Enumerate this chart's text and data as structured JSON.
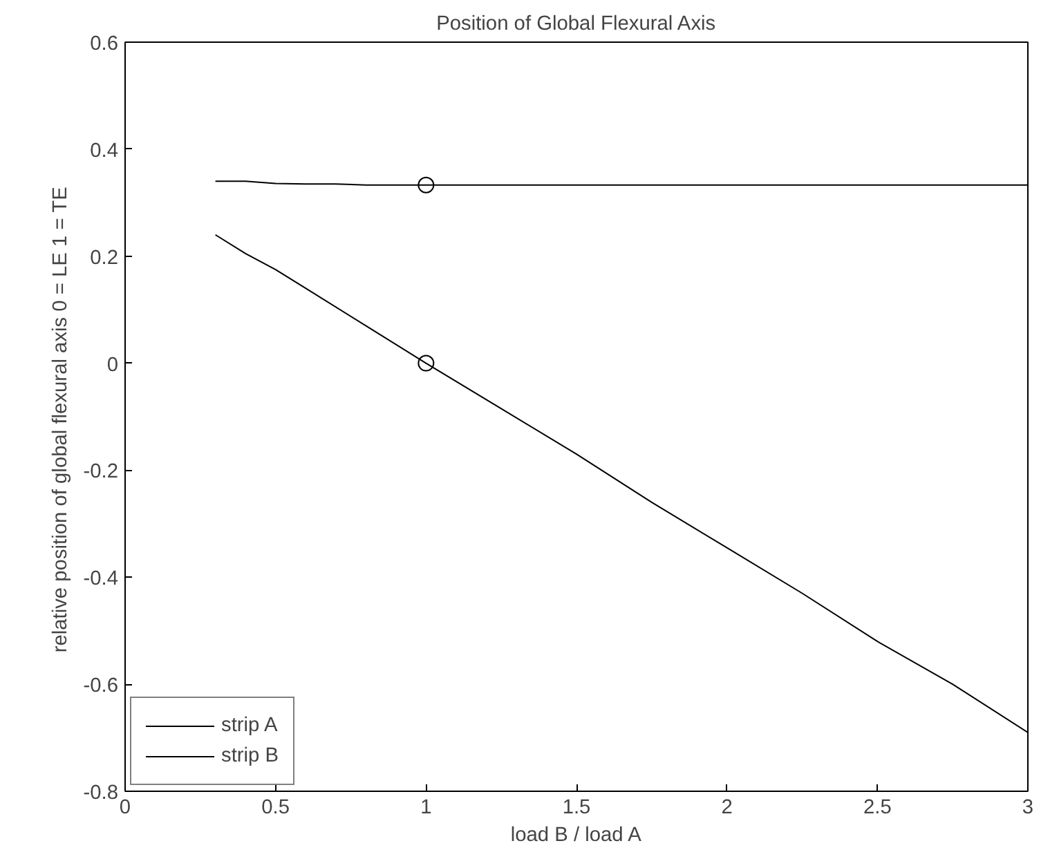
{
  "chart_data": {
    "type": "line",
    "title": "Position of Global Flexural Axis",
    "xlabel": "load B / load A",
    "ylabel": "relative position of global flexural axis  0 = LE 1 = TE",
    "xlim": [
      0,
      3
    ],
    "ylim": [
      -0.8,
      0.6
    ],
    "xticks": [
      0,
      0.5,
      1,
      1.5,
      2,
      2.5,
      3
    ],
    "yticks": [
      -0.8,
      -0.6,
      -0.4,
      -0.2,
      0,
      0.2,
      0.4,
      0.6
    ],
    "grid": false,
    "legend": "bottom left",
    "line_style": "solid",
    "marker": "none",
    "series": [
      {
        "name": "strip A",
        "color": "#000000",
        "x": [
          0.3,
          0.4,
          0.5,
          0.6,
          0.8,
          1.0,
          1.25,
          1.5,
          1.75,
          2.0,
          2.25,
          2.5,
          2.75,
          3.0
        ],
        "values": [
          0.24,
          0.205,
          0.175,
          0.14,
          0.07,
          0.0,
          -0.085,
          -0.17,
          -0.26,
          -0.345,
          -0.43,
          -0.52,
          -0.6,
          -0.69
        ]
      },
      {
        "name": "strip B",
        "color": "#000000",
        "x": [
          0.3,
          0.4,
          0.5,
          0.6,
          0.7,
          0.8,
          1.0,
          1.5,
          2.0,
          2.5,
          3.0
        ],
        "values": [
          0.34,
          0.34,
          0.336,
          0.335,
          0.335,
          0.333,
          0.333,
          0.333,
          0.333,
          0.333,
          0.333
        ]
      },
      {
        "type": "scatter",
        "marker": "circle",
        "color": "#000000",
        "x": [
          1,
          1
        ],
        "values": [
          0.333,
          0.0
        ]
      }
    ]
  }
}
